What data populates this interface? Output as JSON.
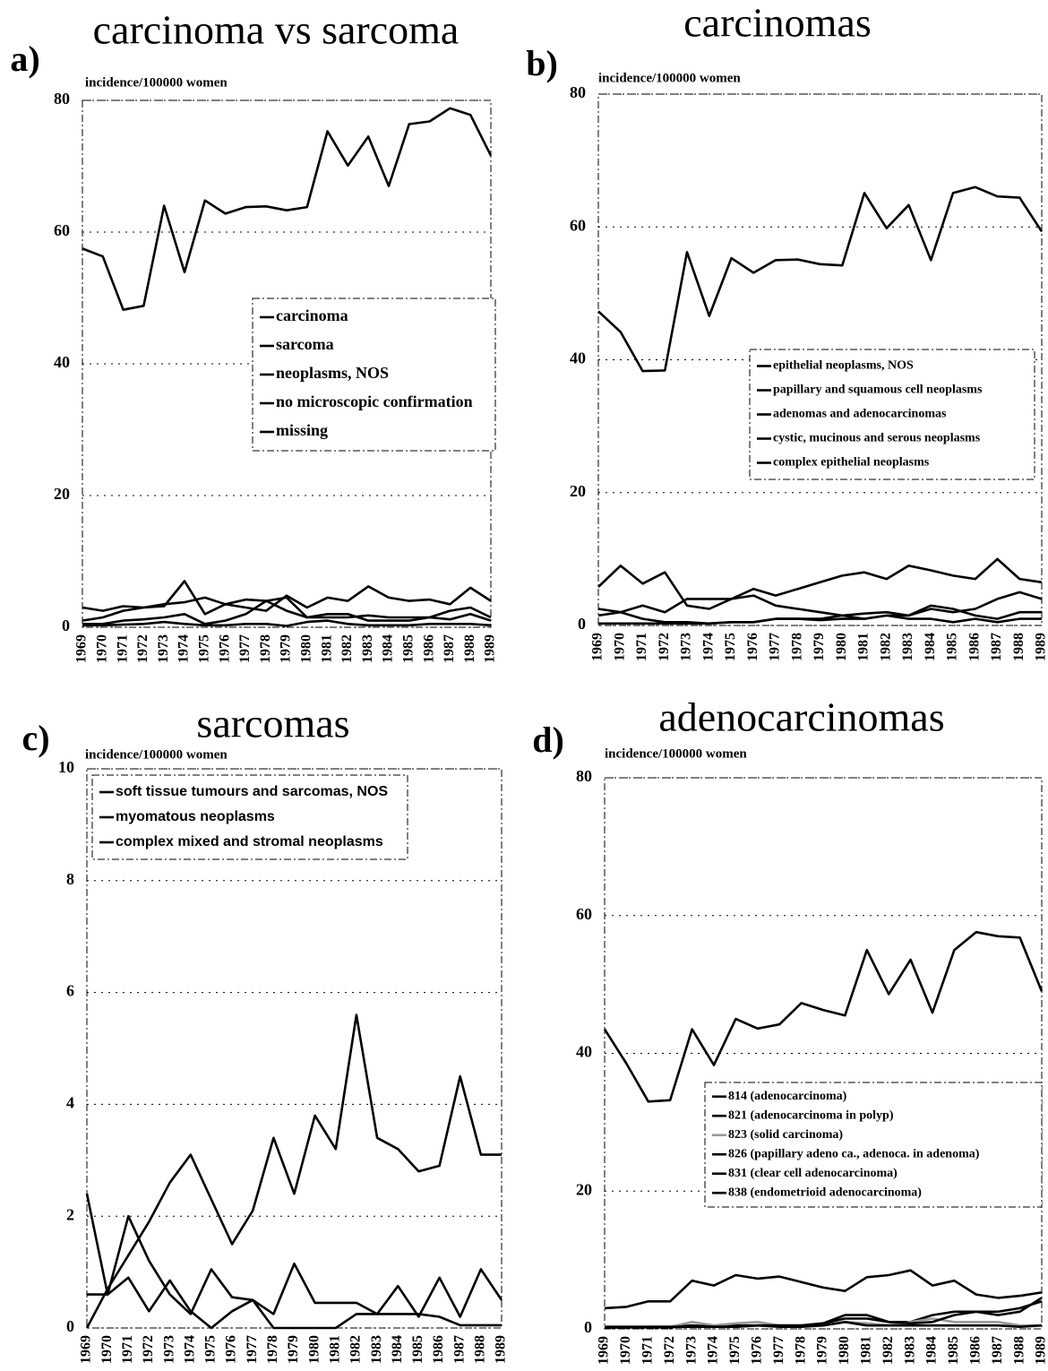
{
  "chart_data": [
    {
      "type": "line",
      "panel": "a)",
      "title": "carcinoma vs sarcoma",
      "y_label": "incidence/100000 women",
      "categories": [
        "1969",
        "1970",
        "1971",
        "1972",
        "1973",
        "1974",
        "1975",
        "1976",
        "1977",
        "1978",
        "1979",
        "1980",
        "1981",
        "1982",
        "1983",
        "1984",
        "1985",
        "1986",
        "1987",
        "1988",
        "1989"
      ],
      "ylim": [
        0,
        80
      ],
      "yticks": [
        0,
        20,
        40,
        60,
        80
      ],
      "grid": true,
      "series": [
        {
          "name": "carcinoma",
          "color": "#000000",
          "values": [
            57.5,
            56.3,
            48.2,
            48.8,
            64,
            53.9,
            64.8,
            62.8,
            63.8,
            63.9,
            63.3,
            63.8,
            75.3,
            70.1,
            74.5,
            67,
            76.4,
            76.8,
            78.8,
            77.8,
            71.6
          ]
        },
        {
          "name": "sarcoma",
          "color": "#000000",
          "values": [
            3,
            2.5,
            3.2,
            3,
            3.2,
            7,
            2,
            3.5,
            3,
            2.5,
            4.8,
            3,
            4.5,
            4,
            6.2,
            4.5,
            4,
            4.2,
            3.5,
            6,
            4
          ]
        },
        {
          "name": "neoplasms, NOS",
          "color": "#000000",
          "values": [
            1,
            1.5,
            2.5,
            3,
            3.5,
            3.8,
            4.5,
            3.5,
            4.2,
            4,
            2.5,
            1.5,
            1.5,
            1.5,
            1.8,
            1.5,
            1.5,
            1.5,
            2.5,
            3,
            1.5
          ]
        },
        {
          "name": "no microscopic confirmation",
          "color": "#000000",
          "values": [
            0.5,
            0.5,
            1,
            1.2,
            1.5,
            2,
            0.5,
            1,
            2,
            4,
            4.5,
            1.5,
            2,
            2,
            1,
            1,
            1,
            1.5,
            1.2,
            2,
            1
          ]
        },
        {
          "name": "missing",
          "color": "#000000",
          "values": [
            0.3,
            0.3,
            0.4,
            0.5,
            0.8,
            0.5,
            0.3,
            0.3,
            0.5,
            0.5,
            0.2,
            0.8,
            1,
            0.5,
            0.3,
            0.3,
            0.3,
            0.5,
            0.5,
            0.5,
            0.3
          ]
        }
      ]
    },
    {
      "type": "line",
      "panel": "b)",
      "title": "carcinomas",
      "y_label": "incidence/100000 women",
      "categories": [
        "1969",
        "1970",
        "1971",
        "1972",
        "1973",
        "1974",
        "1975",
        "1976",
        "1977",
        "1978",
        "1979",
        "1980",
        "1981",
        "1982",
        "1983",
        "1984",
        "1985",
        "1986",
        "1987",
        "1988",
        "1989"
      ],
      "ylim": [
        0,
        80
      ],
      "yticks": [
        0,
        20,
        40,
        60,
        80
      ],
      "grid": true,
      "series": [
        {
          "name": "epithelial neoplasms, NOS",
          "color": "#000000",
          "values": [
            2.5,
            2,
            1,
            0.5,
            0.5,
            0.3,
            0.5,
            0.5,
            1,
            1,
            1,
            1.5,
            1,
            1.5,
            1,
            1,
            0.5,
            1,
            0.5,
            1,
            1
          ]
        },
        {
          "name": "papillary and squamous cell neoplasms",
          "color": "#000000",
          "values": [
            5.8,
            9,
            6.3,
            8,
            3,
            2.5,
            4,
            5.5,
            4.5,
            5.5,
            6.5,
            7.5,
            8,
            7,
            9,
            8.3,
            7.5,
            7,
            10,
            7,
            6.5
          ]
        },
        {
          "name": "adenomas and adenocarcinomas",
          "color": "#000000",
          "values": [
            47.3,
            44.2,
            38.3,
            38.4,
            56.2,
            46.6,
            55.3,
            53.1,
            55,
            55.1,
            54.4,
            54.2,
            65.1,
            59.8,
            63.3,
            55,
            65.1,
            66,
            64.6,
            64.4,
            59.3
          ]
        },
        {
          "name": "cystic, mucinous and serous neoplasms",
          "color": "#000000",
          "values": [
            1.5,
            2,
            3,
            2,
            4,
            4,
            4,
            4.5,
            3,
            2.5,
            2,
            1.5,
            1.8,
            2,
            1.5,
            2.5,
            2,
            2.5,
            4,
            5,
            4
          ]
        },
        {
          "name": "complex epithelial neoplasms",
          "color": "#000000",
          "values": [
            0.3,
            0.3,
            0.3,
            0.3,
            0.3,
            0.3,
            0.5,
            0.5,
            1,
            1,
            0.8,
            1,
            1,
            1.5,
            1.5,
            3,
            2.5,
            1.5,
            1,
            2,
            2
          ]
        }
      ]
    },
    {
      "type": "line",
      "panel": "c)",
      "title": "sarcomas",
      "y_label": "incidence/100000 women",
      "categories": [
        "1969",
        "1970",
        "1971",
        "1972",
        "1973",
        "1974",
        "1975",
        "1976",
        "1977",
        "1978",
        "1979",
        "1980",
        "1981",
        "1982",
        "1983",
        "1984",
        "1985",
        "1986",
        "1987",
        "1988",
        "1989"
      ],
      "ylim": [
        0,
        10
      ],
      "yticks": [
        0,
        2,
        4,
        6,
        8,
        10
      ],
      "grid": true,
      "series": [
        {
          "name": "soft tissue tumours and sarcomas, NOS",
          "color": "#000000",
          "values": [
            0.6,
            0.6,
            0.9,
            0.3,
            0.85,
            0.3,
            0,
            0.3,
            0.5,
            0,
            0,
            0,
            0,
            0.25,
            0.25,
            0.25,
            0.25,
            0.2,
            0.05,
            0.05,
            0.05
          ]
        },
        {
          "name": "myomatous neoplasms",
          "color": "#000000",
          "values": [
            0,
            0.7,
            1.3,
            1.9,
            2.6,
            3.1,
            2.3,
            1.5,
            2.1,
            3.4,
            2.4,
            3.8,
            3.2,
            5.6,
            3.4,
            3.2,
            2.8,
            2.9,
            4.5,
            3.1,
            3.1
          ]
        },
        {
          "name": "complex mixed and stromal neoplasms",
          "color": "#000000",
          "values": [
            2.4,
            0.6,
            2,
            1.2,
            0.6,
            0.25,
            1.05,
            0.55,
            0.5,
            0.25,
            1.15,
            0.45,
            0.45,
            0.45,
            0.25,
            0.75,
            0.2,
            0.9,
            0.2,
            1.05,
            0.5
          ]
        }
      ]
    },
    {
      "type": "line",
      "panel": "d)",
      "title": "adenocarcinomas",
      "y_label": "incidence/100000 women",
      "categories": [
        "1969",
        "1970",
        "1971",
        "1972",
        "1973",
        "1974",
        "1975",
        "1976",
        "1977",
        "1978",
        "1979",
        "1980",
        "1981",
        "1982",
        "1983",
        "1984",
        "1985",
        "1986",
        "1987",
        "1988",
        "1989"
      ],
      "ylim": [
        0,
        80
      ],
      "yticks": [
        0,
        20,
        40,
        60,
        80
      ],
      "grid": true,
      "series": [
        {
          "name": "814 (adenocarcinoma)",
          "color": "#000000",
          "values": [
            43.5,
            38.5,
            33,
            33.2,
            43.5,
            38.3,
            45,
            43.6,
            44.2,
            47.3,
            46.3,
            45.5,
            55,
            48.6,
            53.6,
            45.9,
            55,
            57.6,
            57,
            56.8,
            49
          ]
        },
        {
          "name": "821 (adenocarcinoma in polyp)",
          "color": "#000000",
          "values": [
            0.2,
            0.2,
            0.3,
            0.3,
            0.5,
            0.3,
            0.5,
            0.5,
            0.5,
            0.5,
            0.8,
            1.5,
            1.5,
            1,
            1,
            2,
            2.5,
            2.5,
            2.5,
            3,
            4
          ]
        },
        {
          "name": "823 (solid carcinoma)",
          "color": "#999999",
          "values": [
            0.3,
            0.3,
            0.3,
            0.3,
            1,
            0.5,
            0.8,
            1,
            0.5,
            0.5,
            0.5,
            1,
            0.8,
            0.5,
            1,
            1.5,
            1,
            1,
            1,
            0.5,
            0.5
          ]
        },
        {
          "name": "826 (papillary adeno ca., adenoca. in adenoma)",
          "color": "#000000",
          "values": [
            0.3,
            0.3,
            0.3,
            0.3,
            0.3,
            0.3,
            0.3,
            0.5,
            0.5,
            0.5,
            0.8,
            2,
            2,
            1,
            0.8,
            1,
            2,
            2.5,
            2,
            2.5,
            4.5
          ]
        },
        {
          "name": "831 (clear cell adenocarcinoma)",
          "color": "#000000",
          "values": [
            0.2,
            0.2,
            0.2,
            0.2,
            0.5,
            0.3,
            0.3,
            0.5,
            0.3,
            0.3,
            0.5,
            1,
            0.5,
            0.5,
            0.5,
            0.5,
            0.5,
            0.5,
            0.5,
            0.3,
            0.5
          ]
        },
        {
          "name": "838 (endometrioid adenocarcinoma)",
          "color": "#000000",
          "values": [
            3,
            3.2,
            4,
            4,
            7,
            6.3,
            7.8,
            7.3,
            7.6,
            6.8,
            6,
            5.5,
            7.5,
            7.8,
            8.5,
            6.3,
            7,
            5,
            4.5,
            4.8,
            5.3
          ]
        }
      ]
    }
  ]
}
